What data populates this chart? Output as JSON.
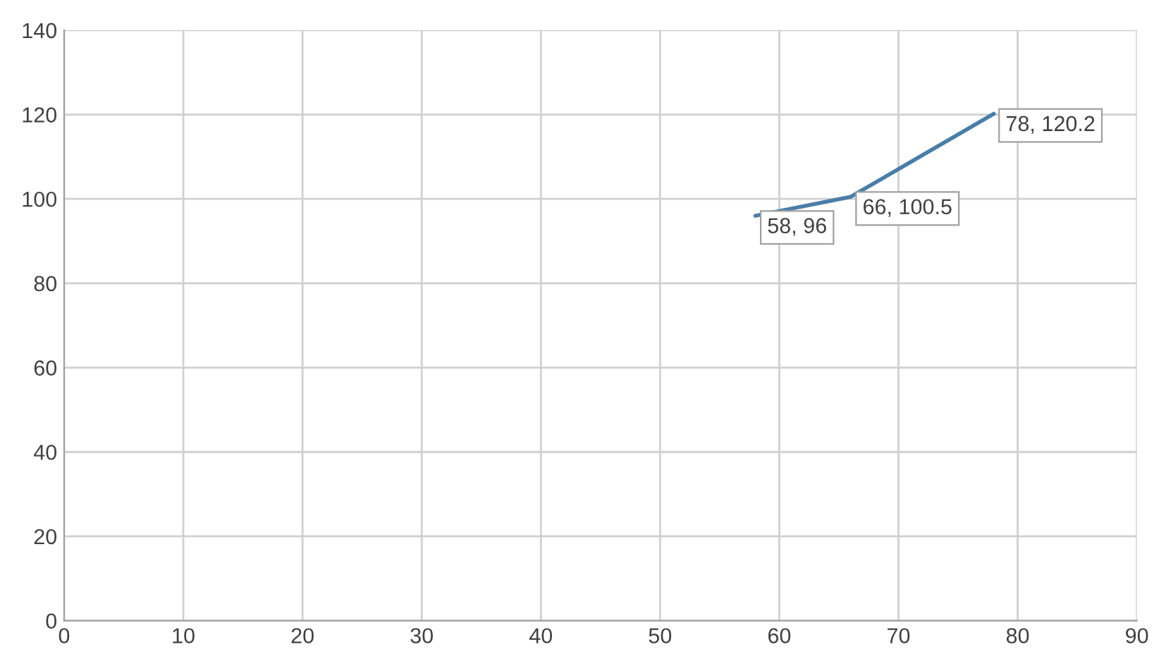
{
  "chart_data": {
    "type": "line",
    "x": [
      58,
      66,
      78
    ],
    "series": [
      {
        "color": "#4a7ea8",
        "values": [
          96,
          100.5,
          120.2
        ],
        "value_labels": [
          "58, 96",
          "66, 100.5",
          "78, 120.2"
        ]
      }
    ],
    "xlim": [
      0,
      90
    ],
    "xticks": [
      0,
      10,
      20,
      30,
      40,
      50,
      60,
      70,
      80,
      90
    ],
    "ylim": [
      0,
      140
    ],
    "yticks": [
      0,
      20,
      40,
      60,
      80,
      100,
      120,
      140
    ],
    "grid": true,
    "marker": "none",
    "line_style": "solid"
  }
}
